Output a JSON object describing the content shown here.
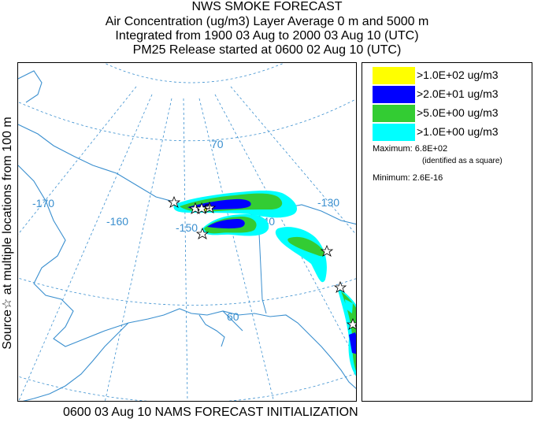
{
  "header": {
    "title": "NWS SMOKE FORECAST",
    "line2": "Air Concentration (ug/m3) Layer Average    0 m and  5000 m",
    "line3": "Integrated from 1900 03 Aug to 2000 03 Aug 10 (UTC)",
    "line4": "PM25 Release started at 0600 02 Aug 10 (UTC)"
  },
  "side_label": "Source☆ at multiple locations   from   100 m",
  "footer": "0600 03 Aug 10 NAMS FORECAST INITIALIZATION",
  "legend": {
    "items": [
      {
        "label": ">1.0E+02 ug/m3",
        "color": "#ffff00"
      },
      {
        "label": ">2.0E+01 ug/m3",
        "color": "#0000ff"
      },
      {
        "label": ">5.0E+00 ug/m3",
        "color": "#00dd00"
      },
      {
        "label": ">1.0E+00 ug/m3",
        "color": "#00ffff"
      }
    ],
    "maximum": "Maximum: 6.8E+02",
    "maximum_note": "(identified as a square)",
    "minimum": "Minimum: 2.6E-16"
  },
  "map": {
    "grid_labels": {
      "lat_70": "70",
      "lat_60": "60",
      "lon_170": "-170",
      "lon_160": "-160",
      "lon_150": "-150",
      "lon_140": "-140",
      "lon_130": "-130"
    },
    "colors": {
      "coast": "#3a8fcf",
      "grid": "#3a8fcf",
      "cyan": "#00ffff",
      "green": "#33cc33",
      "blue": "#0000ff",
      "yellow": "#ffff00"
    }
  }
}
